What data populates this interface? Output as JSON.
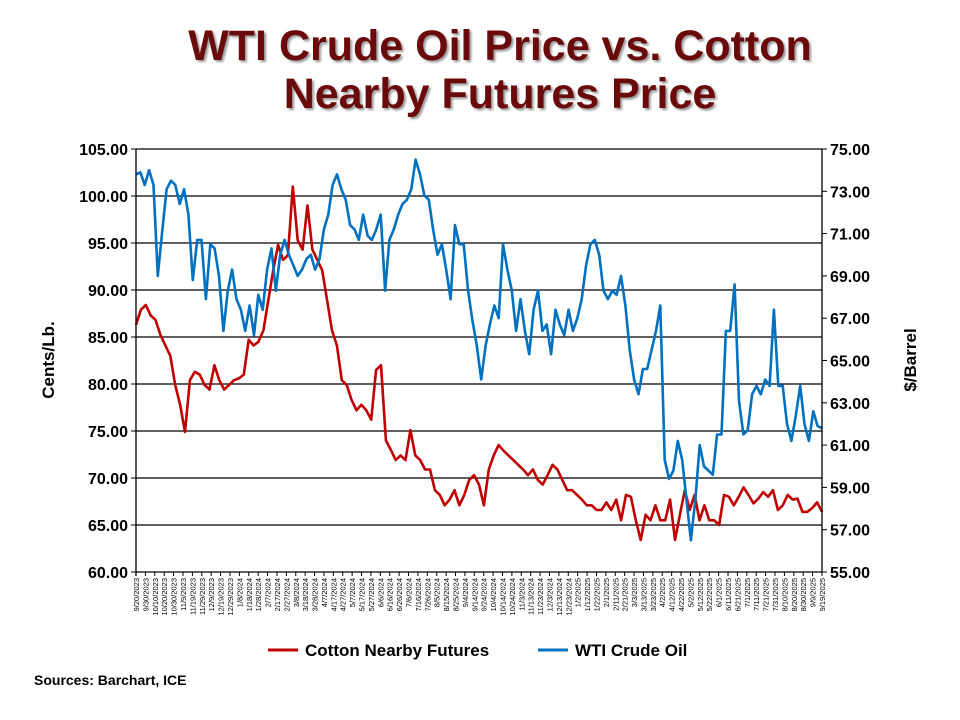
{
  "chart_data": {
    "type": "line",
    "title": [
      "WTI Crude Oil Price vs. Cotton",
      "Nearby Futures Price"
    ],
    "ylabel": "Cents/Lb.",
    "y2label": "$/Barrel",
    "ylim": [
      60,
      105
    ],
    "y2lim": [
      55,
      75
    ],
    "yticks": [
      "105.00",
      "100.00",
      "95.00",
      "90.00",
      "85.00",
      "80.00",
      "75.00",
      "70.00",
      "65.00",
      "60.00"
    ],
    "y2ticks": [
      "75.00",
      "73.00",
      "71.00",
      "69.00",
      "67.00",
      "65.00",
      "63.00",
      "61.00",
      "59.00",
      "57.00",
      "55.00"
    ],
    "grid": true,
    "x_range": [
      "9/20/2023",
      "9/19/2025"
    ],
    "xticks": [
      "9/20/2023",
      "9/30/2023",
      "10/10/2023",
      "10/20/2023",
      "10/30/2023",
      "11/9/2023",
      "11/19/2023",
      "11/29/2023",
      "12/9/2023",
      "12/19/2023",
      "12/29/2023",
      "1/8/2024",
      "1/18/2024",
      "1/28/2024",
      "2/7/2024",
      "2/17/2024",
      "2/27/2024",
      "3/8/2024",
      "3/18/2024",
      "3/28/2024",
      "4/7/2024",
      "4/17/2024",
      "4/27/2024",
      "5/7/2024",
      "5/17/2024",
      "5/27/2024",
      "6/6/2024",
      "6/16/2024",
      "6/26/2024",
      "7/6/2024",
      "7/16/2024",
      "7/26/2024",
      "8/5/2024",
      "8/15/2024",
      "8/25/2024",
      "9/4/2024",
      "9/14/2024",
      "9/24/2024",
      "10/4/2024",
      "10/14/2024",
      "10/24/2024",
      "11/3/2024",
      "11/13/2024",
      "11/23/2024",
      "12/3/2024",
      "12/13/2024",
      "12/23/2024",
      "1/2/2025",
      "1/12/2025",
      "1/22/2025",
      "2/1/2025",
      "2/11/2025",
      "2/21/2025",
      "3/3/2025",
      "3/13/2025",
      "3/23/2025",
      "4/2/2025",
      "4/12/2025",
      "4/22/2025",
      "5/2/2025",
      "5/12/2025",
      "5/22/2025",
      "6/1/2025",
      "6/11/2025",
      "6/21/2025",
      "7/1/2025",
      "7/11/2025",
      "7/21/2025",
      "7/31/2025",
      "8/10/2025",
      "8/20/2025",
      "8/30/2025",
      "9/9/2025",
      "9/19/2025"
    ],
    "series": [
      {
        "name": "Cotton Nearby Futures",
        "axis": "left",
        "color": "#c00000",
        "values": [
          86.3,
          87.9,
          88.4,
          87.3,
          86.8,
          85.2,
          84.1,
          83.0,
          79.9,
          77.8,
          74.9,
          80.4,
          81.3,
          81.0,
          79.9,
          79.4,
          82.0,
          80.4,
          79.4,
          79.9,
          80.4,
          80.6,
          81.0,
          84.7,
          84.1,
          84.5,
          85.7,
          88.9,
          92.1,
          94.8,
          93.2,
          93.7,
          101.0,
          95.3,
          94.3,
          99.0,
          94.3,
          93.2,
          92.1,
          88.9,
          85.7,
          84.1,
          80.4,
          79.9,
          78.3,
          77.2,
          77.8,
          77.2,
          76.2,
          81.5,
          82.0,
          74.0,
          73.0,
          71.9,
          72.4,
          71.9,
          75.1,
          72.4,
          71.9,
          70.9,
          70.9,
          68.7,
          68.2,
          67.1,
          67.7,
          68.7,
          67.1,
          68.2,
          69.8,
          70.3,
          69.3,
          67.1,
          70.9,
          72.4,
          73.5,
          72.9,
          72.4,
          71.9,
          71.4,
          70.9,
          70.3,
          70.9,
          69.8,
          69.3,
          70.3,
          71.4,
          70.9,
          69.8,
          68.7,
          68.7,
          68.2,
          67.7,
          67.1,
          67.1,
          66.6,
          66.6,
          67.4,
          66.6,
          67.7,
          65.5,
          68.2,
          68.0,
          65.5,
          63.4,
          66.1,
          65.5,
          67.1,
          65.5,
          65.5,
          67.7,
          63.4,
          66.1,
          68.7,
          66.6,
          68.2,
          65.5,
          67.1,
          65.5,
          65.5,
          65.0,
          68.2,
          68.0,
          67.1,
          68.0,
          69.0,
          68.2,
          67.3,
          67.8,
          68.5,
          68.0,
          68.7,
          66.6,
          67.1,
          68.2,
          67.7,
          67.8,
          66.4,
          66.4,
          66.8,
          67.4,
          66.4
        ]
      },
      {
        "name": "WTI Crude Oil",
        "axis": "right",
        "color": "#0070c0",
        "values": [
          73.8,
          73.9,
          73.3,
          74.0,
          73.3,
          69.0,
          71.1,
          73.1,
          73.5,
          73.3,
          72.4,
          73.1,
          71.9,
          68.8,
          70.7,
          70.7,
          67.9,
          70.5,
          70.3,
          69.0,
          66.4,
          68.3,
          69.3,
          67.9,
          67.4,
          66.4,
          67.6,
          66.2,
          68.1,
          67.4,
          69.3,
          70.3,
          68.3,
          70.0,
          70.7,
          70.0,
          69.5,
          69.0,
          69.3,
          69.8,
          70.0,
          69.3,
          69.8,
          71.2,
          71.9,
          73.3,
          73.8,
          73.1,
          72.6,
          71.4,
          71.2,
          70.7,
          71.9,
          70.9,
          70.7,
          71.2,
          71.9,
          68.3,
          70.7,
          71.2,
          71.9,
          72.4,
          72.6,
          73.1,
          74.5,
          73.8,
          72.8,
          72.6,
          71.2,
          70.0,
          70.5,
          69.3,
          67.9,
          71.4,
          70.5,
          70.5,
          68.3,
          66.9,
          65.7,
          64.1,
          65.7,
          66.7,
          67.6,
          67.0,
          70.5,
          69.3,
          68.3,
          66.4,
          67.9,
          66.4,
          65.3,
          67.4,
          68.3,
          66.4,
          66.7,
          65.3,
          67.4,
          66.7,
          66.2,
          67.4,
          66.4,
          67.0,
          67.9,
          69.5,
          70.5,
          70.7,
          70.0,
          68.3,
          67.9,
          68.3,
          68.1,
          69.0,
          67.6,
          65.5,
          64.1,
          63.4,
          64.6,
          64.6,
          65.5,
          66.4,
          67.6,
          60.3,
          59.4,
          59.8,
          61.2,
          60.3,
          58.4,
          56.5,
          58.4,
          61.0,
          60.0,
          59.8,
          59.6,
          61.5,
          61.5,
          66.4,
          66.4,
          68.6,
          63.1,
          61.5,
          61.7,
          63.4,
          63.8,
          63.4,
          64.1,
          63.8,
          67.4,
          63.8,
          63.8,
          62.0,
          61.2,
          62.4,
          63.8,
          62.0,
          61.2,
          62.6,
          61.9,
          61.8
        ]
      }
    ],
    "legend_placement": "bottom"
  },
  "sources": "Sources: Barchart, ICE"
}
